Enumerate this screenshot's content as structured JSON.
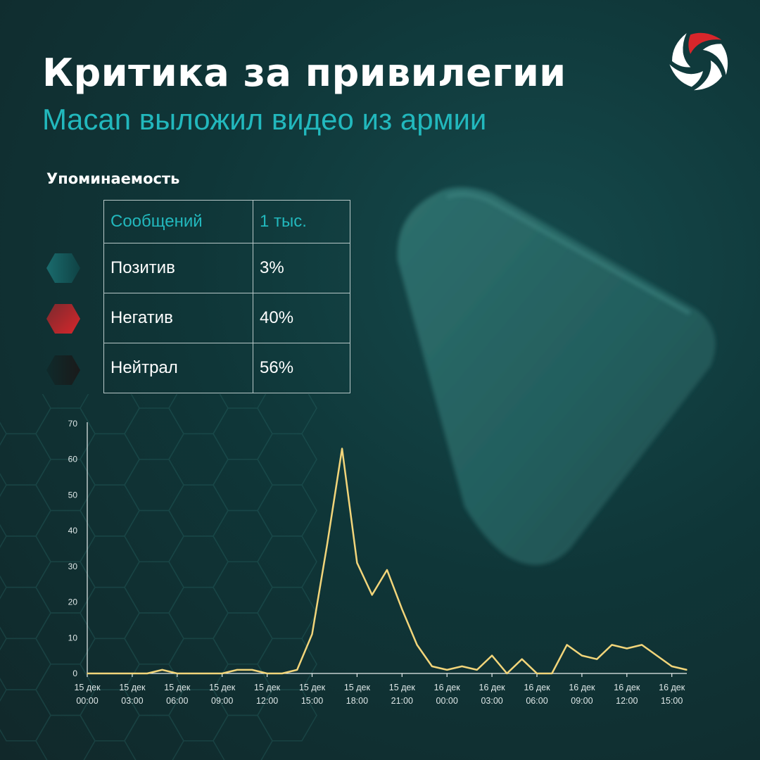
{
  "header": {
    "title": "Критика за привилегии",
    "subtitle": "Macan выложил видео из армии"
  },
  "logo": {
    "icon": "swirl-logo",
    "colors": [
      "#ffffff",
      "#d8262b"
    ]
  },
  "section": {
    "title": "Упоминаемость"
  },
  "stats": {
    "header": {
      "label": "Сообщений",
      "value": "1 тыс."
    },
    "rows": [
      {
        "label": "Позитив",
        "value": "3%",
        "color": "#1a6b6d"
      },
      {
        "label": "Негатив",
        "value": "40%",
        "color": "#d8262b"
      },
      {
        "label": "Нейтрал",
        "value": "56%",
        "color": "#161e1e"
      }
    ]
  },
  "chart_data": {
    "type": "line",
    "ylim": [
      0,
      70
    ],
    "yticks": [
      "0",
      "10",
      "20",
      "30",
      "40",
      "50",
      "60",
      "70"
    ],
    "xtick_labels": [
      [
        "15 дек",
        "00:00"
      ],
      [
        "15 дек",
        "03:00"
      ],
      [
        "15 дек",
        "06:00"
      ],
      [
        "15 дек",
        "09:00"
      ],
      [
        "15 дек",
        "12:00"
      ],
      [
        "15 дек",
        "15:00"
      ],
      [
        "15 дек",
        "18:00"
      ],
      [
        "15 дек",
        "21:00"
      ],
      [
        "16 дек",
        "00:00"
      ],
      [
        "16 дек",
        "03:00"
      ],
      [
        "16 дек",
        "06:00"
      ],
      [
        "16 дек",
        "09:00"
      ],
      [
        "16 дек",
        "12:00"
      ],
      [
        "16 дек",
        "15:00"
      ]
    ],
    "x_start": "15 дек 00:00",
    "x_end": "16 дек 16:00",
    "x_step": "1 hour",
    "values": [
      0,
      0,
      0,
      0,
      0,
      1,
      0,
      0,
      0,
      0,
      1,
      1,
      0,
      0,
      1,
      11,
      36,
      63,
      31,
      22,
      29,
      18,
      8,
      2,
      1,
      2,
      1,
      5,
      0,
      4,
      0,
      0,
      8,
      5,
      4,
      8,
      7,
      8,
      5,
      2,
      1
    ],
    "line_color": "#f2d57a",
    "grid": false
  }
}
